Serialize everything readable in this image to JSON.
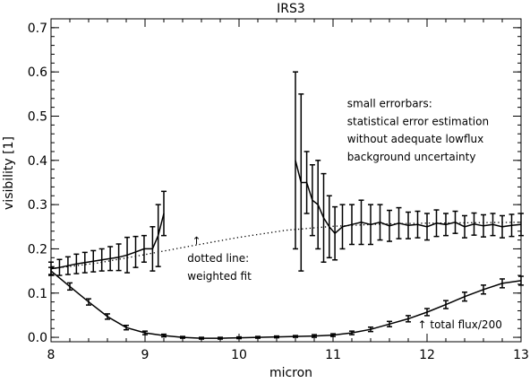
{
  "chart_data": {
    "type": "line",
    "title": "IRS3",
    "xlabel": "micron",
    "ylabel": "visibility [1]",
    "xlim": [
      8,
      13
    ],
    "ylim": [
      -0.01,
      0.72
    ],
    "xticks": [
      8,
      9,
      10,
      11,
      12,
      13
    ],
    "xtick_labels": [
      "8",
      "9",
      "10",
      "11",
      "12",
      "13"
    ],
    "yticks": [
      0.0,
      0.1,
      0.2,
      0.3,
      0.4,
      0.5,
      0.6,
      0.7
    ],
    "ytick_labels": [
      "0.0",
      "0.1",
      "0.2",
      "0.3",
      "0.4",
      "0.5",
      "0.6",
      "0.7"
    ],
    "grid": false,
    "series": [
      {
        "style": "solid",
        "segments": [
          {
            "x": [
              8.0,
              8.09,
              8.18,
              8.27,
              8.36,
              8.45,
              8.54,
              8.63,
              8.72,
              8.81,
              8.9,
              8.99,
              9.08,
              9.14,
              9.2
            ],
            "y": [
              0.155,
              0.158,
              0.162,
              0.166,
              0.169,
              0.172,
              0.175,
              0.178,
              0.181,
              0.186,
              0.193,
              0.2,
              0.2,
              0.23,
              0.28
            ],
            "err": [
              0.015,
              0.018,
              0.02,
              0.022,
              0.023,
              0.024,
              0.025,
              0.027,
              0.03,
              0.04,
              0.035,
              0.03,
              0.05,
              0.07,
              0.05
            ]
          },
          {
            "x": [
              10.6,
              10.66,
              10.72,
              10.78,
              10.84,
              10.9,
              10.96,
              11.02,
              11.1,
              11.2,
              11.3,
              11.4,
              11.5,
              11.6,
              11.7,
              11.8,
              11.9,
              12.0,
              12.1,
              12.2,
              12.3,
              12.4,
              12.5,
              12.6,
              12.7,
              12.8,
              12.9,
              13.0
            ],
            "y": [
              0.4,
              0.35,
              0.35,
              0.31,
              0.3,
              0.27,
              0.25,
              0.235,
              0.25,
              0.255,
              0.26,
              0.255,
              0.26,
              0.252,
              0.258,
              0.253,
              0.255,
              0.25,
              0.258,
              0.255,
              0.26,
              0.25,
              0.256,
              0.252,
              0.255,
              0.25,
              0.253,
              0.255
            ],
            "err": [
              0.2,
              0.2,
              0.07,
              0.08,
              0.1,
              0.1,
              0.07,
              0.06,
              0.05,
              0.045,
              0.05,
              0.045,
              0.04,
              0.035,
              0.035,
              0.03,
              0.03,
              0.03,
              0.03,
              0.025,
              0.025,
              0.025,
              0.025,
              0.025,
              0.025,
              0.025,
              0.025,
              0.025
            ]
          }
        ]
      },
      {
        "style": "dotted",
        "x": [
          8.0,
          8.5,
          9.0,
          9.5,
          10.0,
          10.5,
          11.0,
          11.5,
          12.0,
          12.5,
          13.0
        ],
        "y": [
          0.155,
          0.168,
          0.187,
          0.207,
          0.226,
          0.242,
          0.251,
          0.256,
          0.258,
          0.259,
          0.26
        ]
      },
      {
        "style": "solid",
        "x": [
          8.0,
          8.2,
          8.4,
          8.6,
          8.8,
          9.0,
          9.2,
          9.4,
          9.6,
          9.8,
          10.0,
          10.2,
          10.4,
          10.6,
          10.8,
          11.0,
          11.2,
          11.4,
          11.6,
          11.8,
          12.0,
          12.2,
          12.4,
          12.6,
          12.8,
          13.0
        ],
        "y": [
          0.15,
          0.115,
          0.08,
          0.047,
          0.022,
          0.01,
          0.004,
          0.0,
          -0.002,
          -0.002,
          -0.001,
          0.0,
          0.001,
          0.002,
          0.003,
          0.005,
          0.01,
          0.018,
          0.03,
          0.042,
          0.057,
          0.074,
          0.092,
          0.108,
          0.122,
          0.128
        ],
        "err": [
          0.008,
          0.008,
          0.007,
          0.006,
          0.005,
          0.004,
          0.003,
          0.002,
          0.002,
          0.002,
          0.002,
          0.002,
          0.002,
          0.002,
          0.003,
          0.003,
          0.004,
          0.005,
          0.006,
          0.007,
          0.008,
          0.009,
          0.01,
          0.01,
          0.01,
          0.01
        ]
      }
    ],
    "annotations": [
      {
        "text": "small errorbars:",
        "x": 11.15,
        "y": 0.52
      },
      {
        "text": "statistical error estimation",
        "x": 11.15,
        "y": 0.48
      },
      {
        "text": "without adequate lowflux",
        "x": 11.15,
        "y": 0.44
      },
      {
        "text": "background uncertainty",
        "x": 11.15,
        "y": 0.4
      },
      {
        "text": "↑",
        "x": 9.5,
        "y": 0.21
      },
      {
        "text": "dotted line:",
        "x": 9.45,
        "y": 0.17
      },
      {
        "text": "weighted fit",
        "x": 9.45,
        "y": 0.13
      },
      {
        "text": "↑ total flux/200",
        "x": 11.9,
        "y": 0.02
      }
    ]
  }
}
